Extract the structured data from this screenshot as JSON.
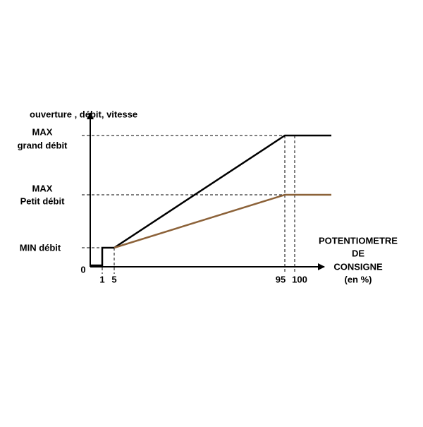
{
  "axis": {
    "y_title": "ouverture , débit, vitesse",
    "x_title": [
      "POTENTIOMETRE",
      "DE",
      "CONSIGNE",
      "(en %)"
    ],
    "origin": "0",
    "x_ticks": [
      "1",
      "5",
      "95",
      "100"
    ],
    "y_levels": [
      [
        "MAX",
        "grand débit"
      ],
      [
        "MAX",
        "Petit débit"
      ],
      [
        "MIN débit"
      ]
    ]
  }
}
